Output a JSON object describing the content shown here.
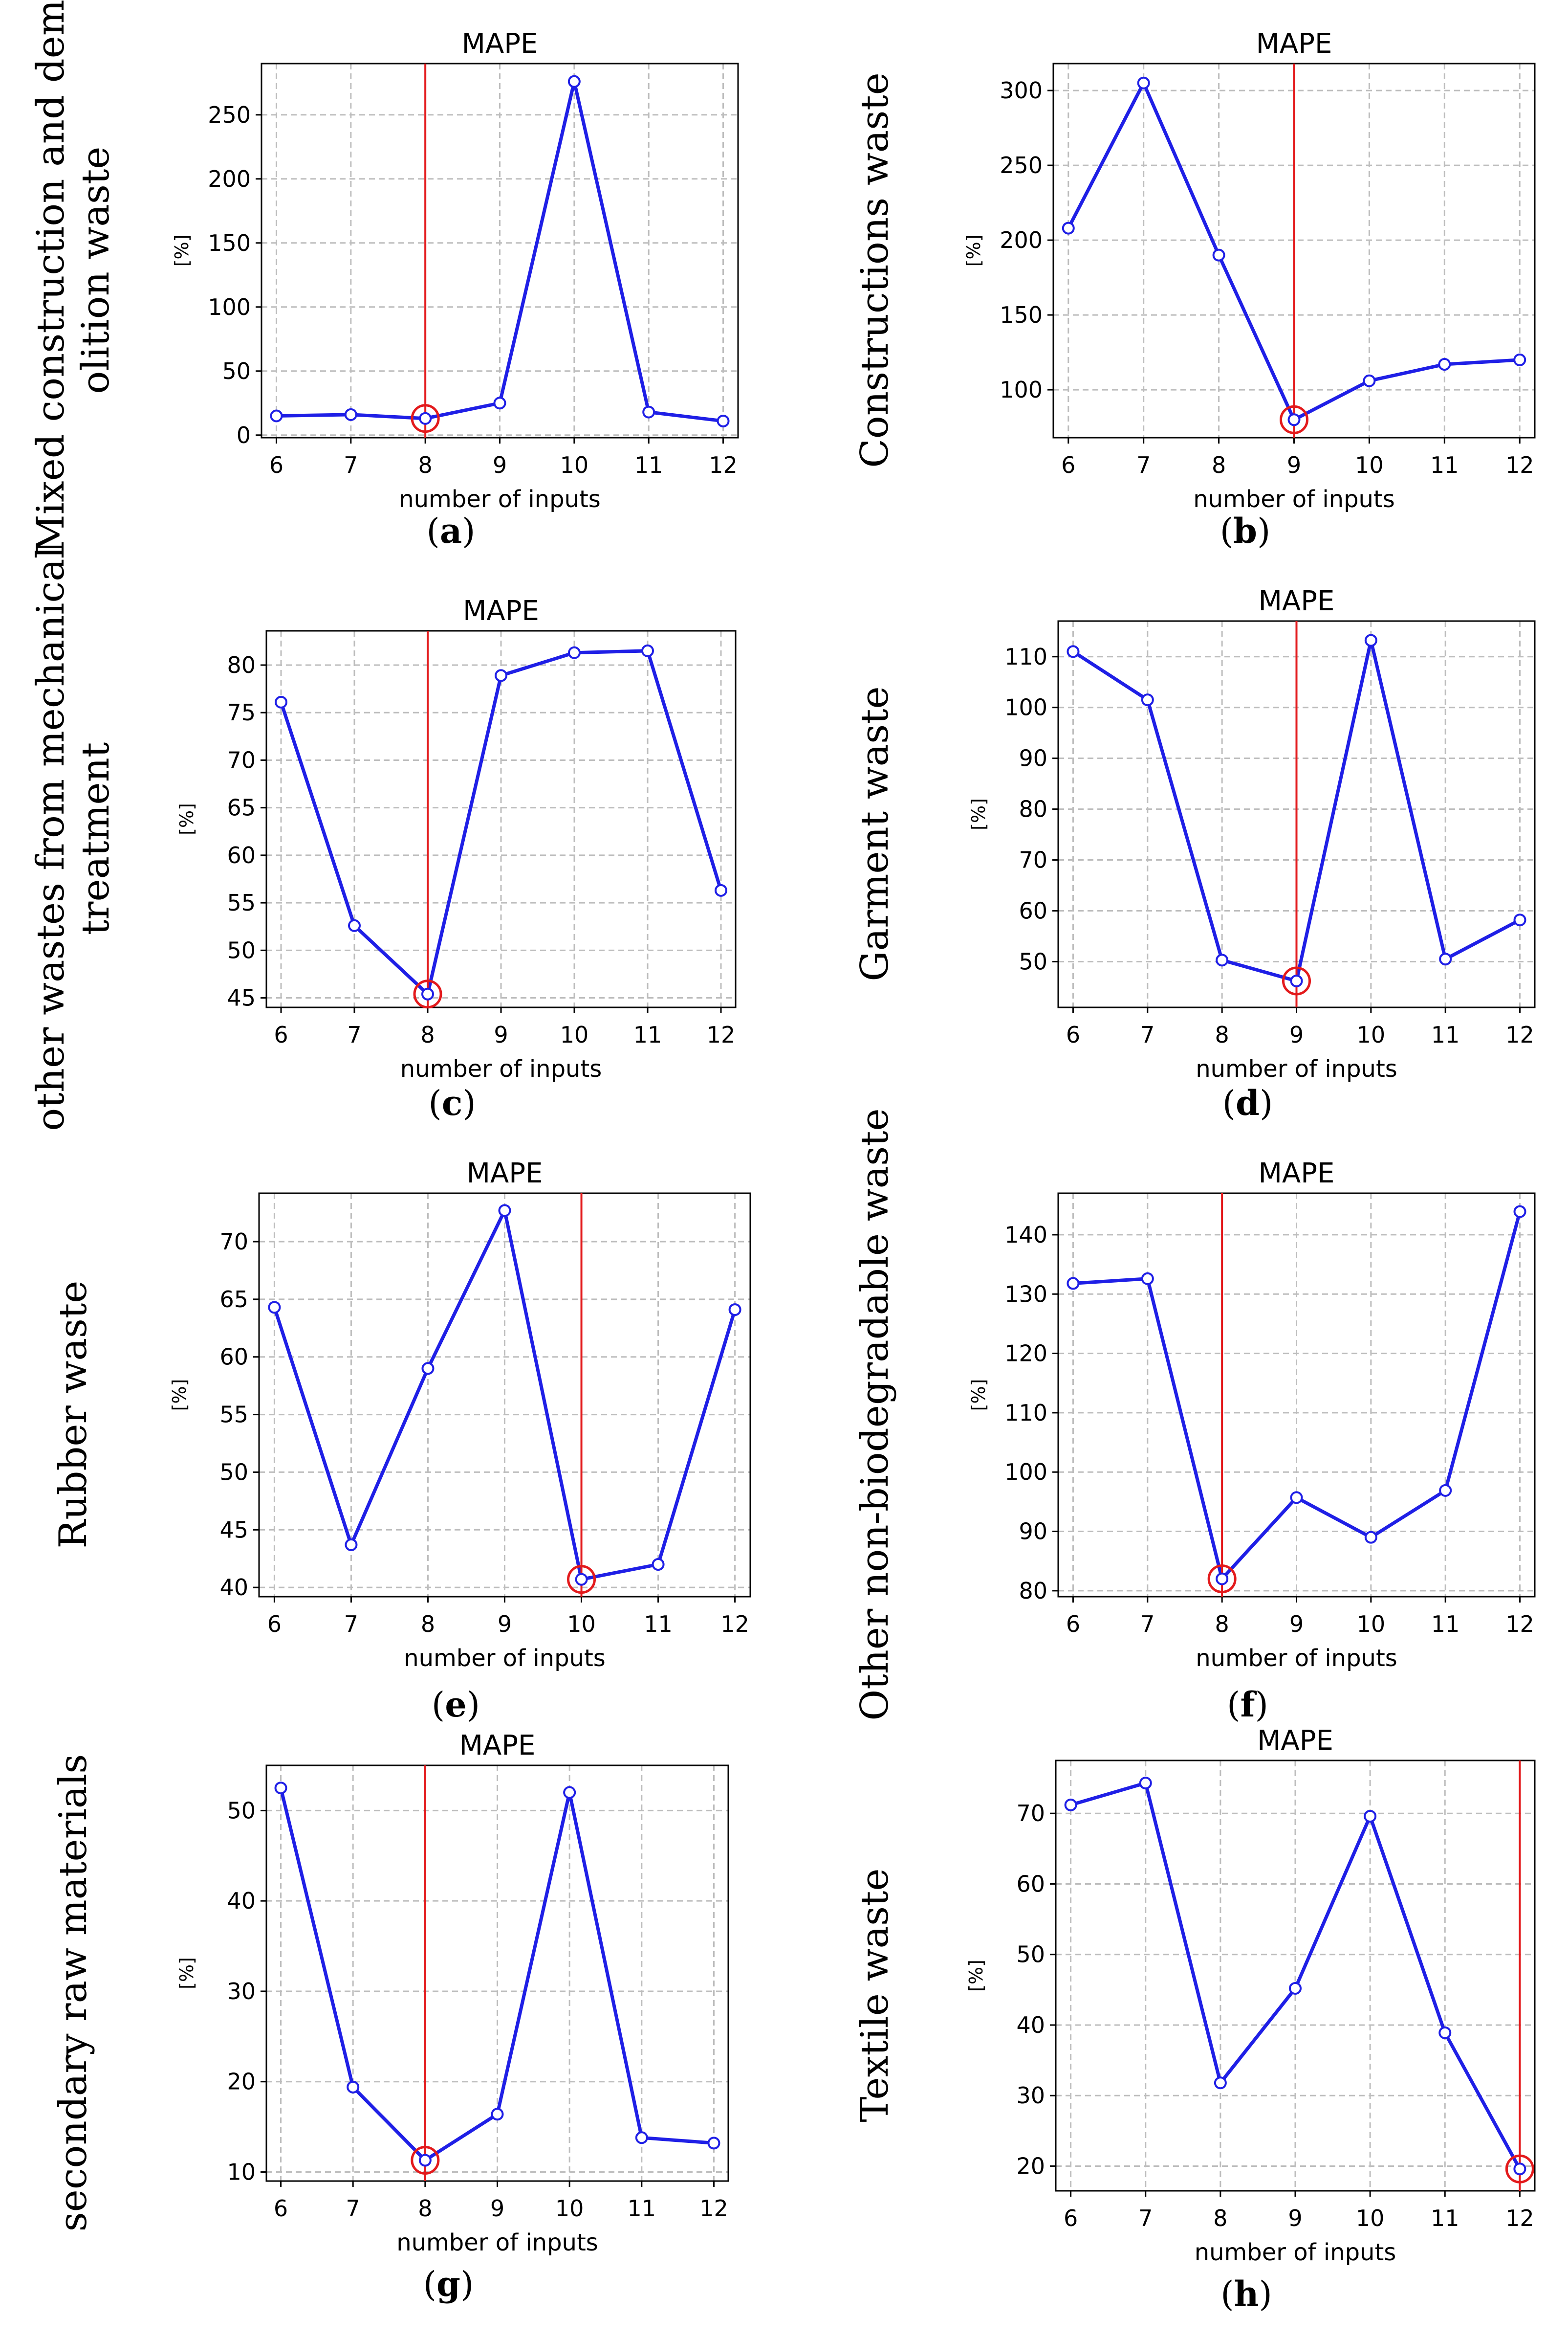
{
  "colors": {
    "line": "#1f1fe6",
    "marker_fill": "#ffffff",
    "selection": "#e31a1c",
    "grid": "#bdbdbd",
    "axes": "#000000"
  },
  "chart_data": [
    {
      "panel": "(a)",
      "row_label": [
        "Mixed construction and dem-",
        "olition waste"
      ],
      "type": "line",
      "title": "MAPE",
      "xlabel": "number of inputs",
      "ylabel": "[%]",
      "x": [
        6,
        7,
        8,
        9,
        10,
        11,
        12
      ],
      "y": [
        15,
        16,
        13,
        25,
        276,
        18,
        11
      ],
      "xlim": [
        5.8,
        12.2
      ],
      "ylim": [
        -2,
        290
      ],
      "yticks": [
        0,
        50,
        100,
        150,
        200,
        250
      ],
      "selected_x": 8,
      "grid": true
    },
    {
      "panel": "(b)",
      "row_label": [
        "Constructions waste"
      ],
      "type": "line",
      "title": "MAPE",
      "xlabel": "number of inputs",
      "ylabel": "[%]",
      "x": [
        6,
        7,
        8,
        9,
        10,
        11,
        12
      ],
      "y": [
        208,
        305,
        190,
        80,
        106,
        117,
        120
      ],
      "xlim": [
        5.8,
        12.2
      ],
      "ylim": [
        68,
        318
      ],
      "yticks": [
        100,
        150,
        200,
        250,
        300
      ],
      "selected_x": 9,
      "grid": true
    },
    {
      "panel": "(c)",
      "row_label": [
        "other wastes from mechanical",
        "treatment"
      ],
      "type": "line",
      "title": "MAPE",
      "xlabel": "number of inputs",
      "ylabel": "[%]",
      "x": [
        6,
        7,
        8,
        9,
        10,
        11,
        12
      ],
      "y": [
        76.1,
        52.6,
        45.4,
        78.9,
        81.3,
        81.5,
        56.3
      ],
      "xlim": [
        5.8,
        12.2
      ],
      "ylim": [
        44,
        83.6
      ],
      "yticks": [
        45,
        50,
        55,
        60,
        65,
        70,
        75,
        80
      ],
      "selected_x": 8,
      "grid": true
    },
    {
      "panel": "(d)",
      "row_label": [
        "Garment waste"
      ],
      "type": "line",
      "title": "MAPE",
      "xlabel": "number of inputs",
      "ylabel": "[%]",
      "x": [
        6,
        7,
        8,
        9,
        10,
        11,
        12
      ],
      "y": [
        111,
        101.5,
        50.3,
        46.2,
        113.2,
        50.5,
        58.2
      ],
      "xlim": [
        5.8,
        12.2
      ],
      "ylim": [
        41,
        117
      ],
      "yticks": [
        50,
        60,
        70,
        80,
        90,
        100,
        110
      ],
      "selected_x": 9,
      "grid": true
    },
    {
      "panel": "(e)",
      "row_label": [
        "Rubber waste"
      ],
      "type": "line",
      "title": "MAPE",
      "xlabel": "number of  inputs",
      "ylabel": "[%]",
      "x": [
        6,
        7,
        8,
        9,
        10,
        11,
        12
      ],
      "y": [
        64.3,
        43.7,
        59,
        72.7,
        40.7,
        42,
        64.1
      ],
      "xlim": [
        5.8,
        12.2
      ],
      "ylim": [
        39.2,
        74.2
      ],
      "yticks": [
        40,
        45,
        50,
        55,
        60,
        65,
        70
      ],
      "selected_x": 10,
      "grid": true
    },
    {
      "panel": "(f)",
      "row_label": [
        "Other non-biodegradable waste"
      ],
      "type": "line",
      "title": "MAPE",
      "xlabel": "number of inputs",
      "ylabel": "[%]",
      "x": [
        6,
        7,
        8,
        9,
        10,
        11,
        12
      ],
      "y": [
        131.8,
        132.6,
        82,
        95.7,
        89,
        96.9,
        143.9
      ],
      "xlim": [
        5.8,
        12.2
      ],
      "ylim": [
        79,
        147
      ],
      "yticks": [
        80,
        90,
        100,
        110,
        120,
        130,
        140
      ],
      "selected_x": 8,
      "grid": true
    },
    {
      "panel": "(g)",
      "row_label": [
        "secondary raw materials"
      ],
      "type": "line",
      "title": "MAPE",
      "xlabel": "number of  inputs",
      "ylabel": "[%]",
      "x": [
        6,
        7,
        8,
        9,
        10,
        11,
        12
      ],
      "y": [
        52.5,
        19.4,
        11.3,
        16.4,
        52,
        13.8,
        13.2
      ],
      "xlim": [
        5.8,
        12.2
      ],
      "ylim": [
        9,
        55
      ],
      "yticks": [
        10,
        20,
        30,
        40,
        50
      ],
      "selected_x": 8,
      "grid": true
    },
    {
      "panel": "(h)",
      "row_label": [
        "Textile waste"
      ],
      "type": "line",
      "title": "MAPE",
      "xlabel": "number of inputs",
      "ylabel": "[%]",
      "x": [
        6,
        7,
        8,
        9,
        10,
        11,
        12
      ],
      "y": [
        71.2,
        74.3,
        31.8,
        45.2,
        69.6,
        38.9,
        19.6
      ],
      "xlim": [
        5.8,
        12.2
      ],
      "ylim": [
        16.5,
        77.5
      ],
      "yticks": [
        20,
        30,
        40,
        50,
        60,
        70
      ],
      "selected_x": 12,
      "grid": true
    }
  ]
}
